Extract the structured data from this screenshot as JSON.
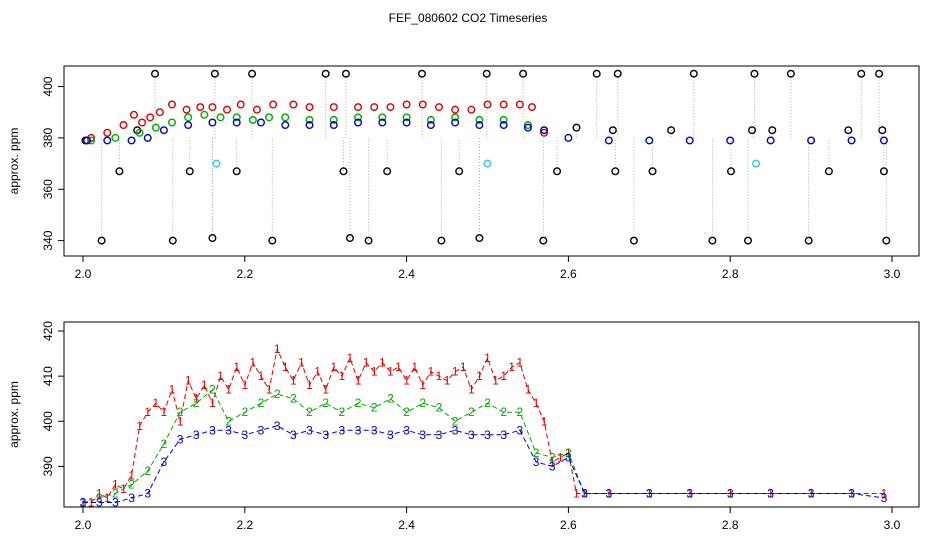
{
  "title": "FEF_080602  CO2 Timeseries",
  "chart_data": [
    {
      "type": "scatter",
      "ylabel": "approx. ppm",
      "xlim": [
        2.0,
        3.0
      ],
      "ylim": [
        334,
        408
      ],
      "x_ticks": [
        2.0,
        2.2,
        2.4,
        2.6,
        2.8,
        3.0
      ],
      "x_tick_labels": [
        "2.0",
        "2.2",
        "2.4",
        "2.6",
        "2.8",
        "3.0"
      ],
      "y_ticks": [
        340,
        360,
        380,
        400
      ],
      "y_tick_labels": [
        "340",
        "360",
        "380",
        "400"
      ],
      "series": [
        {
          "color": "#000000",
          "x": [
            2.003,
            2.023,
            2.045,
            2.067,
            2.089,
            2.111,
            2.132,
            2.16,
            2.163,
            2.19,
            2.209,
            2.234,
            2.3,
            2.322,
            2.325,
            2.33,
            2.353,
            2.376,
            2.419,
            2.443,
            2.465,
            2.49,
            2.499,
            2.544,
            2.569,
            2.586,
            2.61,
            2.635,
            2.655,
            2.658,
            2.661,
            2.681,
            2.704,
            2.727,
            2.755,
            2.778,
            2.801,
            2.822,
            2.827,
            2.83,
            2.852,
            2.875,
            2.897,
            2.922,
            2.946,
            2.962,
            2.984,
            2.988,
            2.99,
            2.993
          ],
          "values": [
            379,
            340,
            367,
            383,
            405,
            340,
            367,
            341,
            405,
            367,
            405,
            340,
            405,
            367,
            405,
            341,
            340,
            367,
            405,
            340,
            367,
            341,
            405,
            405,
            340,
            367,
            384,
            405,
            383,
            367,
            405,
            340,
            367,
            383,
            405,
            340,
            367,
            340,
            383,
            405,
            383,
            405,
            340,
            367,
            383,
            405,
            405,
            383,
            367,
            340
          ]
        },
        {
          "color": "#dd0000",
          "x": [
            2.01,
            2.03,
            2.05,
            2.063,
            2.073,
            2.083,
            2.095,
            2.11,
            2.128,
            2.145,
            2.16,
            2.178,
            2.195,
            2.215,
            2.235,
            2.26,
            2.28,
            2.31,
            2.34,
            2.36,
            2.38,
            2.4,
            2.42,
            2.44,
            2.46,
            2.48,
            2.5,
            2.52,
            2.54,
            2.555,
            2.57
          ],
          "values": [
            380,
            382,
            385,
            389,
            386,
            388,
            390,
            393,
            391,
            392,
            392,
            391,
            393,
            391,
            393,
            393,
            392,
            392,
            392,
            392,
            392,
            393,
            393,
            392,
            391,
            391,
            393,
            393,
            393,
            392,
            382
          ]
        },
        {
          "color": "#00aa00",
          "x": [
            2.01,
            2.04,
            2.07,
            2.09,
            2.11,
            2.13,
            2.15,
            2.17,
            2.19,
            2.21,
            2.23,
            2.25,
            2.28,
            2.31,
            2.34,
            2.37,
            2.4,
            2.43,
            2.46,
            2.49,
            2.52,
            2.55,
            2.57
          ],
          "values": [
            379,
            380,
            382,
            384,
            386,
            388,
            389,
            388,
            388,
            387,
            388,
            388,
            387,
            387,
            388,
            388,
            388,
            387,
            388,
            387,
            387,
            385,
            383
          ]
        },
        {
          "color": "#0000cc",
          "x": [
            2.005,
            2.03,
            2.06,
            2.08,
            2.1,
            2.13,
            2.16,
            2.19,
            2.22,
            2.25,
            2.28,
            2.31,
            2.34,
            2.37,
            2.4,
            2.43,
            2.46,
            2.49,
            2.52,
            2.55,
            2.57,
            2.6,
            2.65,
            2.7,
            2.75,
            2.8,
            2.85,
            2.9,
            2.95,
            2.99
          ],
          "values": [
            379,
            379,
            379,
            380,
            383,
            385,
            386,
            386,
            386,
            385,
            385,
            385,
            386,
            386,
            386,
            385,
            386,
            385,
            385,
            384,
            383,
            380,
            379,
            379,
            379,
            379,
            379,
            379,
            379,
            379
          ]
        },
        {
          "color": "#33cccc",
          "x": [
            2.165,
            2.5,
            2.832
          ],
          "values": [
            370,
            370,
            370
          ]
        }
      ]
    },
    {
      "type": "scatter",
      "ylabel": "approx. ppm",
      "xlim": [
        2.0,
        3.0
      ],
      "ylim": [
        381,
        422
      ],
      "x_ticks": [
        2.0,
        2.2,
        2.4,
        2.6,
        2.8,
        3.0
      ],
      "x_tick_labels": [
        "2.0",
        "2.2",
        "2.4",
        "2.6",
        "2.8",
        "3.0"
      ],
      "y_ticks": [
        390,
        400,
        410,
        420
      ],
      "y_tick_labels": [
        "390",
        "400",
        "410",
        "420"
      ],
      "series": [
        {
          "marker": "1",
          "color": "#dd0000",
          "x": [
            2.0,
            2.01,
            2.02,
            2.03,
            2.04,
            2.05,
            2.06,
            2.07,
            2.08,
            2.09,
            2.1,
            2.11,
            2.12,
            2.13,
            2.14,
            2.15,
            2.16,
            2.17,
            2.18,
            2.19,
            2.2,
            2.21,
            2.22,
            2.23,
            2.24,
            2.25,
            2.26,
            2.27,
            2.28,
            2.29,
            2.3,
            2.31,
            2.32,
            2.33,
            2.34,
            2.35,
            2.36,
            2.37,
            2.38,
            2.39,
            2.4,
            2.41,
            2.42,
            2.43,
            2.44,
            2.45,
            2.46,
            2.47,
            2.48,
            2.49,
            2.5,
            2.51,
            2.52,
            2.53,
            2.54,
            2.55,
            2.56,
            2.57,
            2.58,
            2.59,
            2.6,
            2.61,
            2.62,
            2.65,
            2.7,
            2.75,
            2.8,
            2.85,
            2.9,
            2.95,
            2.99
          ],
          "values": [
            382,
            382,
            384,
            383,
            386,
            385,
            388,
            399,
            402,
            404,
            402,
            407,
            400,
            409,
            405,
            408,
            404,
            410,
            407,
            412,
            408,
            413,
            410,
            407,
            416,
            412,
            409,
            413,
            408,
            411,
            407,
            412,
            410,
            414,
            409,
            413,
            411,
            413,
            411,
            412,
            409,
            412,
            408,
            411,
            410,
            409,
            411,
            412,
            407,
            410,
            414,
            409,
            410,
            412,
            413,
            407,
            404,
            400,
            391,
            392,
            393,
            384,
            384,
            384,
            384,
            384,
            384,
            384,
            384,
            384,
            384
          ]
        },
        {
          "marker": "2",
          "color": "#00aa00",
          "x": [
            2.0,
            2.02,
            2.04,
            2.06,
            2.08,
            2.1,
            2.12,
            2.14,
            2.16,
            2.18,
            2.2,
            2.22,
            2.24,
            2.26,
            2.28,
            2.3,
            2.32,
            2.34,
            2.36,
            2.38,
            2.4,
            2.42,
            2.44,
            2.46,
            2.48,
            2.5,
            2.52,
            2.54,
            2.56,
            2.58,
            2.6,
            2.62
          ],
          "values": [
            382,
            383,
            384,
            386,
            389,
            395,
            402,
            404,
            407,
            400,
            402,
            404,
            406,
            405,
            402,
            404,
            402,
            404,
            403,
            405,
            402,
            404,
            403,
            400,
            402,
            404,
            402,
            402,
            393,
            392,
            393,
            384
          ]
        },
        {
          "marker": "3",
          "color": "#0000cc",
          "x": [
            2.0,
            2.02,
            2.04,
            2.06,
            2.08,
            2.1,
            2.12,
            2.14,
            2.16,
            2.18,
            2.2,
            2.22,
            2.24,
            2.26,
            2.28,
            2.3,
            2.32,
            2.34,
            2.36,
            2.38,
            2.4,
            2.42,
            2.44,
            2.46,
            2.48,
            2.5,
            2.52,
            2.54,
            2.56,
            2.58,
            2.6,
            2.62,
            2.65,
            2.7,
            2.75,
            2.8,
            2.85,
            2.9,
            2.95,
            2.99
          ],
          "values": [
            382,
            382,
            382,
            383,
            384,
            391,
            396,
            397,
            398,
            398,
            397,
            398,
            399,
            397,
            398,
            397,
            398,
            398,
            398,
            397,
            398,
            397,
            397,
            398,
            397,
            397,
            397,
            398,
            391,
            390,
            392,
            384,
            384,
            384,
            384,
            384,
            384,
            384,
            384,
            383
          ]
        }
      ]
    }
  ]
}
